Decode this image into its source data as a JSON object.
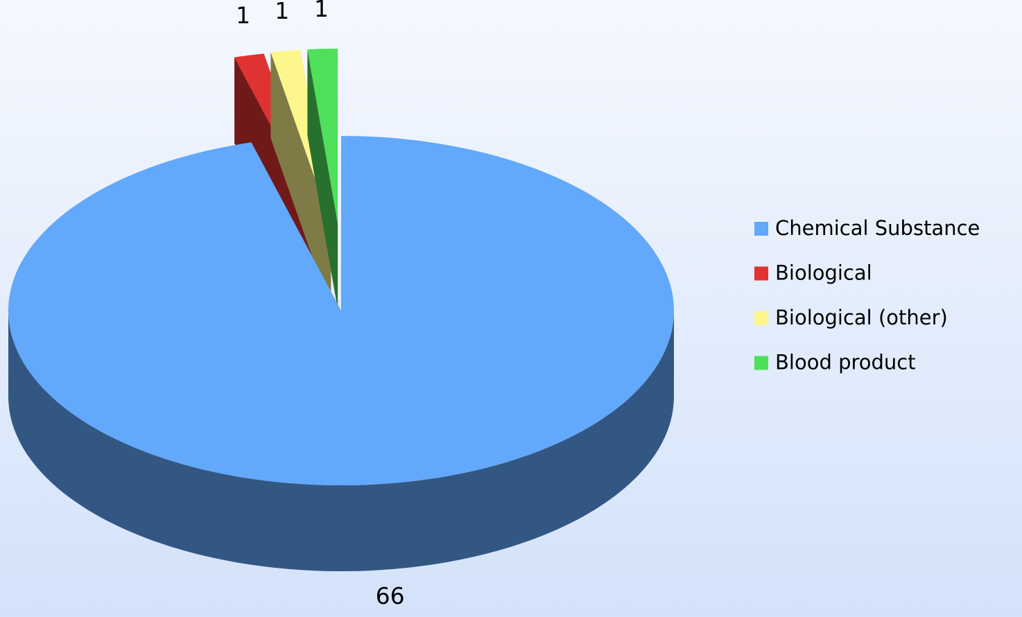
{
  "chart_data": {
    "type": "pie3d",
    "categories": [
      "Chemical Substance",
      "Biological",
      "Biological (other)",
      "Blood product"
    ],
    "values": [
      66,
      1,
      1,
      1
    ],
    "colors": [
      "#62a8fb",
      "#e03232",
      "#fdf68c",
      "#4ee05a"
    ],
    "exploded": [
      false,
      true,
      true,
      true
    ],
    "legend": "right"
  }
}
